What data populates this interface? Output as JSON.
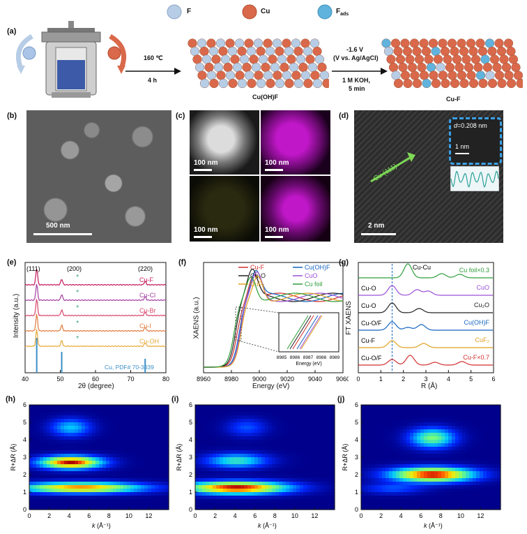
{
  "panel_a": {
    "label": "(a)",
    "legend": {
      "f": "F",
      "cu": "Cu",
      "fads_main": "F",
      "fads_sub": "ads"
    },
    "step1": {
      "temp": "160 ℃",
      "time": "4 h"
    },
    "product1": "Cu(OH)F",
    "step2": {
      "potential": "-1.6 V",
      "ref": "(V vs. Ag/AgCl)",
      "electrolyte": "1 M KOH,",
      "time": "5 min"
    },
    "product2": "Cu-F",
    "colors": {
      "cu": "#d9694a",
      "f": "#b7cde6",
      "fads": "#5fb3dc"
    }
  },
  "panel_b": {
    "label": "(b)",
    "scale": "500 nm"
  },
  "panel_c": {
    "label": "(c)",
    "scales": [
      "100 nm",
      "100 nm",
      "100 nm",
      "100 nm"
    ]
  },
  "panel_d": {
    "label": "(d)",
    "spacing_d": "d",
    "spacing_value": "=0.208 nm",
    "inset_scale": "1 nm",
    "plane": "Cu (111)",
    "scale": "2 nm"
  },
  "panel_e": {
    "label": "(e)",
    "ylabel": "Intensity (a.u.)",
    "xlabel": "2θ (degree)",
    "ticks": [
      "40",
      "50",
      "60",
      "70",
      "80"
    ],
    "peaks": [
      "(111)",
      "(200)",
      "(220)"
    ],
    "series": [
      {
        "name": "Cu-F",
        "color": "#c2185b"
      },
      {
        "name": "Cu-Cl",
        "color": "#a33ea1"
      },
      {
        "name": "Cu-Br",
        "color": "#d9466b"
      },
      {
        "name": "Cu-I",
        "color": "#e07a3c"
      },
      {
        "name": "Cu-OH",
        "color": "#e8a93a"
      }
    ],
    "ref": "Cu, PDF# 70-3039",
    "star": "*"
  },
  "panel_f": {
    "label": "(f)",
    "ylabel": "XAENS (a.u.)",
    "xlabel": "Energy (eV)",
    "ticks": [
      "8960",
      "8980",
      "9000",
      "9020",
      "9040",
      "9060"
    ],
    "legend": [
      {
        "name": "Cu-F",
        "color": "#d32f2f"
      },
      {
        "name": "Cu(OH)F",
        "color": "#1565c0"
      },
      {
        "name": "Cu₂O",
        "color": "#222222"
      },
      {
        "name": "CuO",
        "color": "#9c4fd6"
      },
      {
        "name": "CuF₂",
        "color": "#e0a020"
      },
      {
        "name": "Cu foil",
        "color": "#2e9d3a"
      }
    ],
    "inset_xlabel": "Energy (eV)",
    "inset_ticks": [
      "8985",
      "8986",
      "8987",
      "8988",
      "8989"
    ]
  },
  "panel_g": {
    "label": "(g)",
    "ylabel": "FT XAENS",
    "xlabel": "R (Å)",
    "ticks": [
      "0",
      "1",
      "2",
      "3",
      "4",
      "5",
      "6"
    ],
    "left_labels": [
      "Cu-O",
      "Cu-O",
      "Cu-O/F",
      "Cu-F",
      "Cu-O/F"
    ],
    "top_label": "Cu-Cu",
    "series": [
      {
        "name": "Cu foil×0.3",
        "color": "#2e9d3a"
      },
      {
        "name": "CuO",
        "color": "#9c4fd6"
      },
      {
        "name": "Cu₂O",
        "color": "#222222"
      },
      {
        "name": "Cu(OH)F",
        "color": "#1565c0"
      },
      {
        "name": "CuF₂",
        "color": "#e0a020"
      },
      {
        "name": "Cu-F×0.7",
        "color": "#d32f2f"
      }
    ]
  },
  "wavelet": {
    "ylabel": "R+ΔR (Å)",
    "xlabel_k": "k",
    "xlabel_unit": " (Å⁻¹)",
    "yticks": [
      "6",
      "5",
      "4",
      "3",
      "2",
      "1",
      "0"
    ],
    "xticks": [
      "0",
      "2",
      "4",
      "6",
      "8",
      "10",
      "12"
    ],
    "labels": [
      "(h)",
      "(i)",
      "(j)"
    ]
  }
}
